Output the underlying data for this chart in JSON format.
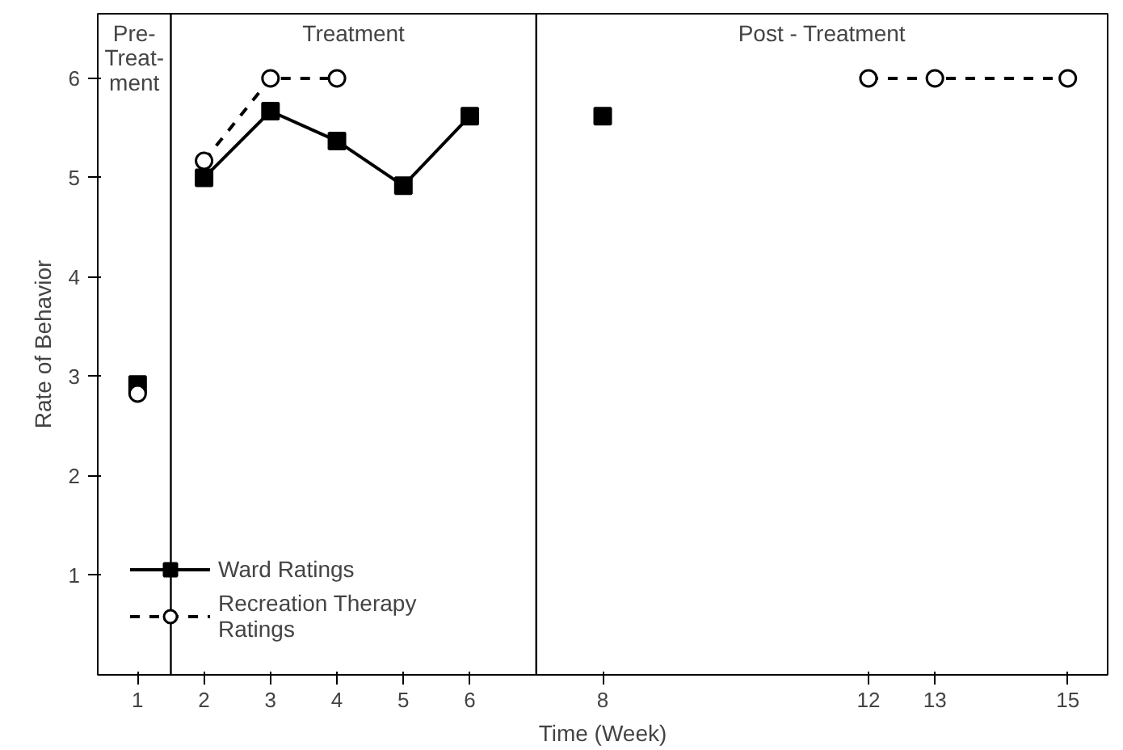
{
  "chart_data": {
    "type": "line",
    "xlabel": "Time (Week)",
    "ylabel": "Rate of Behavior",
    "x": [
      1,
      2,
      3,
      4,
      5,
      6,
      8,
      12,
      13,
      15
    ],
    "xlim": [
      0.4,
      15.6
    ],
    "xticks": [
      1,
      2,
      3,
      4,
      5,
      6,
      8,
      12,
      13,
      15
    ],
    "ylim": [
      0,
      6.65
    ],
    "yticks": [
      1,
      2,
      3,
      4,
      5,
      6
    ],
    "series": [
      {
        "name": "Ward Ratings",
        "color": "#000000",
        "marker": "square",
        "line_style": "solid",
        "values": [
          null,
          5.0,
          5.67,
          5.37,
          4.92,
          5.62,
          null,
          null,
          null,
          null
        ]
      },
      {
        "name": "Recreation Therapy\nRatings",
        "color": "#000000",
        "marker": "circle",
        "line_style": "dashed",
        "values": [
          null,
          5.17,
          6.0,
          6.0,
          null,
          null,
          null,
          null,
          null,
          null
        ]
      },
      {
        "type": "scatter",
        "color": "#000000",
        "marker": "square",
        "values": [
          2.92,
          null,
          null,
          null,
          null,
          null,
          5.62,
          null,
          null,
          null
        ]
      },
      {
        "type": "scatter",
        "color": "#000000",
        "marker": "circle",
        "values": [
          2.83,
          null,
          null,
          null,
          null,
          null,
          null,
          null,
          null,
          null
        ]
      },
      {
        "color": "#000000",
        "marker": "circle",
        "line_style": "dashed",
        "values": [
          null,
          null,
          null,
          null,
          null,
          null,
          null,
          6.0,
          6.0,
          6.0
        ]
      }
    ],
    "ref_lines": [
      {
        "axis": "x",
        "value": 1.5
      },
      {
        "axis": "x",
        "value": 7
      }
    ],
    "annotations": [
      "Pre-\nTreat-\nment",
      "Treatment",
      "Post - Treatment"
    ],
    "legend": "bottom left",
    "grid": false
  }
}
